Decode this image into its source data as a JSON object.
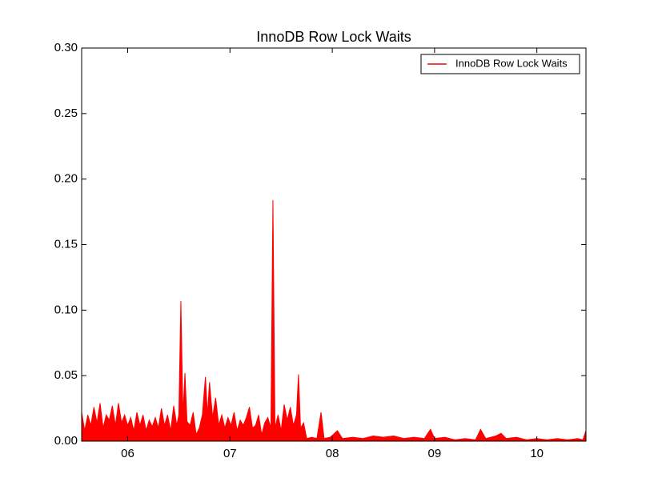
{
  "chart_data": {
    "type": "area",
    "title": "InnoDB Row Lock Waits",
    "color": "#ff0000",
    "legend": "upper right",
    "xlim": [
      5.55,
      10.48
    ],
    "ylim": [
      0,
      0.3
    ],
    "xticks": [
      {
        "value": 6,
        "label": "06"
      },
      {
        "value": 7,
        "label": "07"
      },
      {
        "value": 8,
        "label": "08"
      },
      {
        "value": 9,
        "label": "09"
      },
      {
        "value": 10,
        "label": "10"
      }
    ],
    "yticks": [
      {
        "value": 0,
        "label": "0.00"
      },
      {
        "value": 0.05,
        "label": "0.05"
      },
      {
        "value": 0.1,
        "label": "0.10"
      },
      {
        "value": 0.15,
        "label": "0.15"
      },
      {
        "value": 0.2,
        "label": "0.20"
      },
      {
        "value": 0.25,
        "label": "0.25"
      },
      {
        "value": 0.3,
        "label": "0.30"
      }
    ],
    "series": [
      {
        "name": "InnoDB Row Lock Waits",
        "color": "#ff0000",
        "x": [
          5.55,
          5.58,
          5.61,
          5.64,
          5.67,
          5.7,
          5.73,
          5.76,
          5.79,
          5.82,
          5.85,
          5.88,
          5.91,
          5.94,
          5.97,
          6.0,
          6.03,
          6.06,
          6.09,
          6.12,
          6.15,
          6.18,
          6.21,
          6.24,
          6.27,
          6.3,
          6.33,
          6.36,
          6.39,
          6.42,
          6.45,
          6.48,
          6.5,
          6.52,
          6.54,
          6.56,
          6.58,
          6.61,
          6.64,
          6.67,
          6.7,
          6.73,
          6.76,
          6.78,
          6.8,
          6.83,
          6.86,
          6.89,
          6.92,
          6.95,
          6.98,
          7.01,
          7.04,
          7.07,
          7.1,
          7.13,
          7.16,
          7.19,
          7.22,
          7.25,
          7.28,
          7.31,
          7.34,
          7.37,
          7.4,
          7.42,
          7.44,
          7.47,
          7.5,
          7.53,
          7.56,
          7.59,
          7.62,
          7.65,
          7.67,
          7.69,
          7.72,
          7.75,
          7.8,
          7.85,
          7.89,
          7.92,
          7.98,
          8.05,
          8.1,
          8.2,
          8.3,
          8.4,
          8.5,
          8.6,
          8.7,
          8.8,
          8.9,
          8.96,
          9.0,
          9.1,
          9.2,
          9.3,
          9.4,
          9.45,
          9.5,
          9.6,
          9.65,
          9.7,
          9.8,
          9.9,
          10.0,
          10.1,
          10.2,
          10.3,
          10.4,
          10.45,
          10.48
        ],
        "values": [
          0.022,
          0.008,
          0.02,
          0.012,
          0.026,
          0.014,
          0.029,
          0.01,
          0.02,
          0.016,
          0.027,
          0.012,
          0.029,
          0.014,
          0.02,
          0.012,
          0.018,
          0.008,
          0.022,
          0.012,
          0.02,
          0.008,
          0.016,
          0.011,
          0.018,
          0.01,
          0.025,
          0.012,
          0.02,
          0.008,
          0.027,
          0.012,
          0.02,
          0.107,
          0.02,
          0.052,
          0.015,
          0.012,
          0.022,
          0.005,
          0.01,
          0.02,
          0.049,
          0.02,
          0.045,
          0.018,
          0.033,
          0.012,
          0.02,
          0.01,
          0.018,
          0.012,
          0.022,
          0.008,
          0.016,
          0.012,
          0.018,
          0.026,
          0.01,
          0.012,
          0.02,
          0.005,
          0.014,
          0.018,
          0.01,
          0.184,
          0.01,
          0.02,
          0.008,
          0.028,
          0.016,
          0.026,
          0.012,
          0.02,
          0.051,
          0.01,
          0.014,
          0.002,
          0.003,
          0.002,
          0.022,
          0.002,
          0.003,
          0.008,
          0.002,
          0.003,
          0.002,
          0.004,
          0.003,
          0.004,
          0.002,
          0.003,
          0.002,
          0.009,
          0.002,
          0.003,
          0.001,
          0.002,
          0.001,
          0.009,
          0.002,
          0.004,
          0.006,
          0.002,
          0.003,
          0.001,
          0.002,
          0.001,
          0.002,
          0.001,
          0.002,
          0.001,
          0.008
        ]
      }
    ]
  }
}
